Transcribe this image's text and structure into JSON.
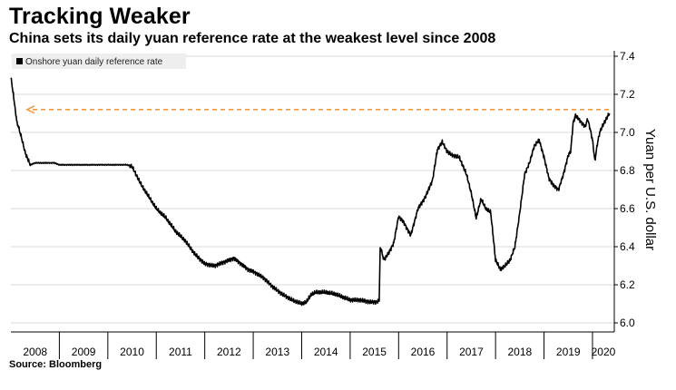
{
  "title": "Tracking Weaker",
  "subtitle": "China sets its daily yuan reference rate at the weakest level since 2008",
  "source": "Source: Bloomberg",
  "colors": {
    "series": "#000000",
    "reference_line": "#f39a3e",
    "grid": "#d8d8d8",
    "legend_bg": "#eeeeee"
  },
  "chart_data": {
    "type": "line",
    "ylabel": "Yuan per U.S. dollar",
    "ylim": [
      6.0,
      7.4
    ],
    "yticks": [
      6.0,
      6.2,
      6.4,
      6.6,
      6.8,
      7.0,
      7.2,
      7.4
    ],
    "ytick_labels": [
      "6.0",
      "6.2",
      "6.4",
      "6.6",
      "6.8",
      "7.0",
      "7.2",
      "7.4"
    ],
    "xlim": [
      2008.0,
      2020.45
    ],
    "xticks": [
      2008,
      2009,
      2010,
      2011,
      2012,
      2013,
      2014,
      2015,
      2016,
      2017,
      2018,
      2019,
      2020
    ],
    "xtick_labels": [
      "2008",
      "2009",
      "2010",
      "2011",
      "2012",
      "2013",
      "2014",
      "2015",
      "2016",
      "2017",
      "2018",
      "2019",
      "2020"
    ],
    "y_axis_side": "right",
    "grid": "horizontal",
    "legend_position": "top-left",
    "series": [
      {
        "name": "Onshore yuan daily reference rate",
        "x": [
          2008.0,
          2008.05,
          2008.12,
          2008.2,
          2008.3,
          2008.4,
          2008.5,
          2008.6,
          2008.7,
          2008.8,
          2008.9,
          2009.0,
          2009.2,
          2009.4,
          2009.6,
          2009.8,
          2010.0,
          2010.2,
          2010.4,
          2010.5,
          2010.6,
          2010.7,
          2010.8,
          2010.9,
          2011.0,
          2011.2,
          2011.4,
          2011.6,
          2011.8,
          2012.0,
          2012.2,
          2012.4,
          2012.5,
          2012.6,
          2012.75,
          2012.9,
          2013.0,
          2013.2,
          2013.4,
          2013.6,
          2013.8,
          2014.0,
          2014.1,
          2014.2,
          2014.3,
          2014.5,
          2014.7,
          2014.9,
          2015.0,
          2015.2,
          2015.4,
          2015.55,
          2015.6,
          2015.62,
          2015.7,
          2015.8,
          2015.9,
          2016.0,
          2016.1,
          2016.25,
          2016.4,
          2016.55,
          2016.7,
          2016.8,
          2016.9,
          2017.0,
          2017.1,
          2017.25,
          2017.4,
          2017.5,
          2017.6,
          2017.7,
          2017.8,
          2017.9,
          2018.0,
          2018.1,
          2018.2,
          2018.3,
          2018.4,
          2018.5,
          2018.6,
          2018.7,
          2018.8,
          2018.9,
          2019.0,
          2019.1,
          2019.2,
          2019.3,
          2019.4,
          2019.5,
          2019.55,
          2019.6,
          2019.65,
          2019.75,
          2019.85,
          2019.9,
          2019.95,
          2020.0,
          2020.05,
          2020.1,
          2020.15,
          2020.2,
          2020.3,
          2020.35
        ],
        "values": [
          7.29,
          7.2,
          7.06,
          6.99,
          6.89,
          6.83,
          6.84,
          6.84,
          6.84,
          6.84,
          6.84,
          6.83,
          6.83,
          6.83,
          6.83,
          6.83,
          6.83,
          6.83,
          6.83,
          6.82,
          6.77,
          6.72,
          6.68,
          6.64,
          6.6,
          6.55,
          6.48,
          6.43,
          6.36,
          6.31,
          6.3,
          6.32,
          6.33,
          6.34,
          6.31,
          6.28,
          6.27,
          6.24,
          6.19,
          6.15,
          6.12,
          6.1,
          6.11,
          6.15,
          6.16,
          6.16,
          6.15,
          6.13,
          6.12,
          6.12,
          6.11,
          6.11,
          6.12,
          6.4,
          6.33,
          6.37,
          6.42,
          6.56,
          6.53,
          6.46,
          6.6,
          6.66,
          6.75,
          6.91,
          6.95,
          6.9,
          6.88,
          6.87,
          6.78,
          6.68,
          6.55,
          6.65,
          6.6,
          6.58,
          6.33,
          6.28,
          6.3,
          6.33,
          6.4,
          6.58,
          6.78,
          6.84,
          6.93,
          6.96,
          6.87,
          6.76,
          6.72,
          6.7,
          6.78,
          6.88,
          6.9,
          7.05,
          7.09,
          7.06,
          7.03,
          7.07,
          7.02,
          6.96,
          6.85,
          6.94,
          7.0,
          7.03,
          7.08,
          7.1
        ]
      }
    ],
    "reference_line": {
      "y": 7.12,
      "style": "dashed",
      "arrow": "left"
    }
  }
}
